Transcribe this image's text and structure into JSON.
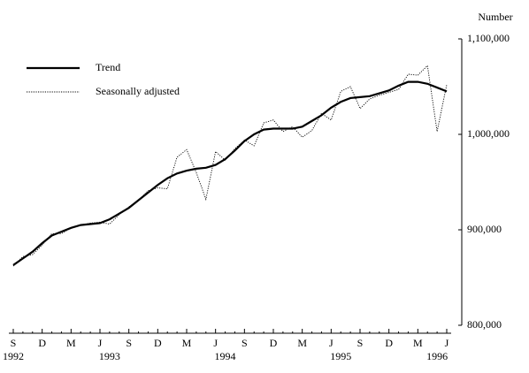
{
  "chart_data": {
    "type": "line",
    "y_axis_label": "Number",
    "categories": [
      "S",
      null,
      null,
      "D",
      null,
      null,
      "M",
      null,
      null,
      "J",
      null,
      null,
      "S",
      null,
      null,
      "D",
      null,
      null,
      "M",
      null,
      null,
      "J",
      null,
      null,
      "S",
      null,
      null,
      "D",
      null,
      null,
      "M",
      null,
      null,
      "J",
      null,
      null,
      "S",
      null,
      null,
      "D",
      null,
      null,
      "M",
      null,
      null,
      "J"
    ],
    "year_labels": [
      "1992",
      null,
      null,
      null,
      null,
      null,
      null,
      null,
      null,
      null,
      "1993",
      null,
      null,
      null,
      null,
      null,
      null,
      null,
      null,
      null,
      null,
      null,
      "1994",
      null,
      null,
      null,
      null,
      null,
      null,
      null,
      null,
      null,
      null,
      null,
      "1995",
      null,
      null,
      null,
      null,
      null,
      null,
      null,
      null,
      null,
      "1996",
      null
    ],
    "series": [
      {
        "name": "Trend",
        "color": "#000000",
        "style": "solid",
        "values": [
          863000,
          870000,
          877000,
          886000,
          894000,
          898000,
          902000,
          905000,
          906000,
          907000,
          911000,
          917000,
          923000,
          931000,
          939000,
          947000,
          954000,
          959000,
          962000,
          964000,
          965000,
          968000,
          974000,
          983000,
          993000,
          1000000,
          1005000,
          1006000,
          1006000,
          1006000,
          1008000,
          1014000,
          1020000,
          1028000,
          1034000,
          1038000,
          1039000,
          1040000,
          1043000,
          1046000,
          1051000,
          1055000,
          1055000,
          1053000,
          1049000,
          1045000
        ]
      },
      {
        "name": "Seasonally adjusted",
        "color": "#000000",
        "style": "dotted",
        "values": [
          862000,
          872000,
          874000,
          884000,
          896000,
          896000,
          902000,
          905000,
          907000,
          908000,
          906000,
          916000,
          924000,
          931000,
          941000,
          944000,
          943000,
          976000,
          984000,
          960000,
          932000,
          982000,
          973000,
          985000,
          994000,
          988000,
          1012000,
          1015000,
          1003000,
          1008000,
          997000,
          1004000,
          1022000,
          1015000,
          1045000,
          1050000,
          1027000,
          1037000,
          1041000,
          1044000,
          1047000,
          1063000,
          1062000,
          1072000,
          1003000,
          1052000
        ]
      }
    ],
    "ylim": [
      800000,
      1100000
    ],
    "yticks": [
      {
        "value": 800000,
        "label": "800,000"
      },
      {
        "value": 900000,
        "label": "900,000"
      },
      {
        "value": 1000000,
        "label": "1,000,000"
      },
      {
        "value": 1100000,
        "label": "1,100,000"
      }
    ],
    "y_axis_side": "right",
    "legend": "top-left",
    "grid": false
  }
}
